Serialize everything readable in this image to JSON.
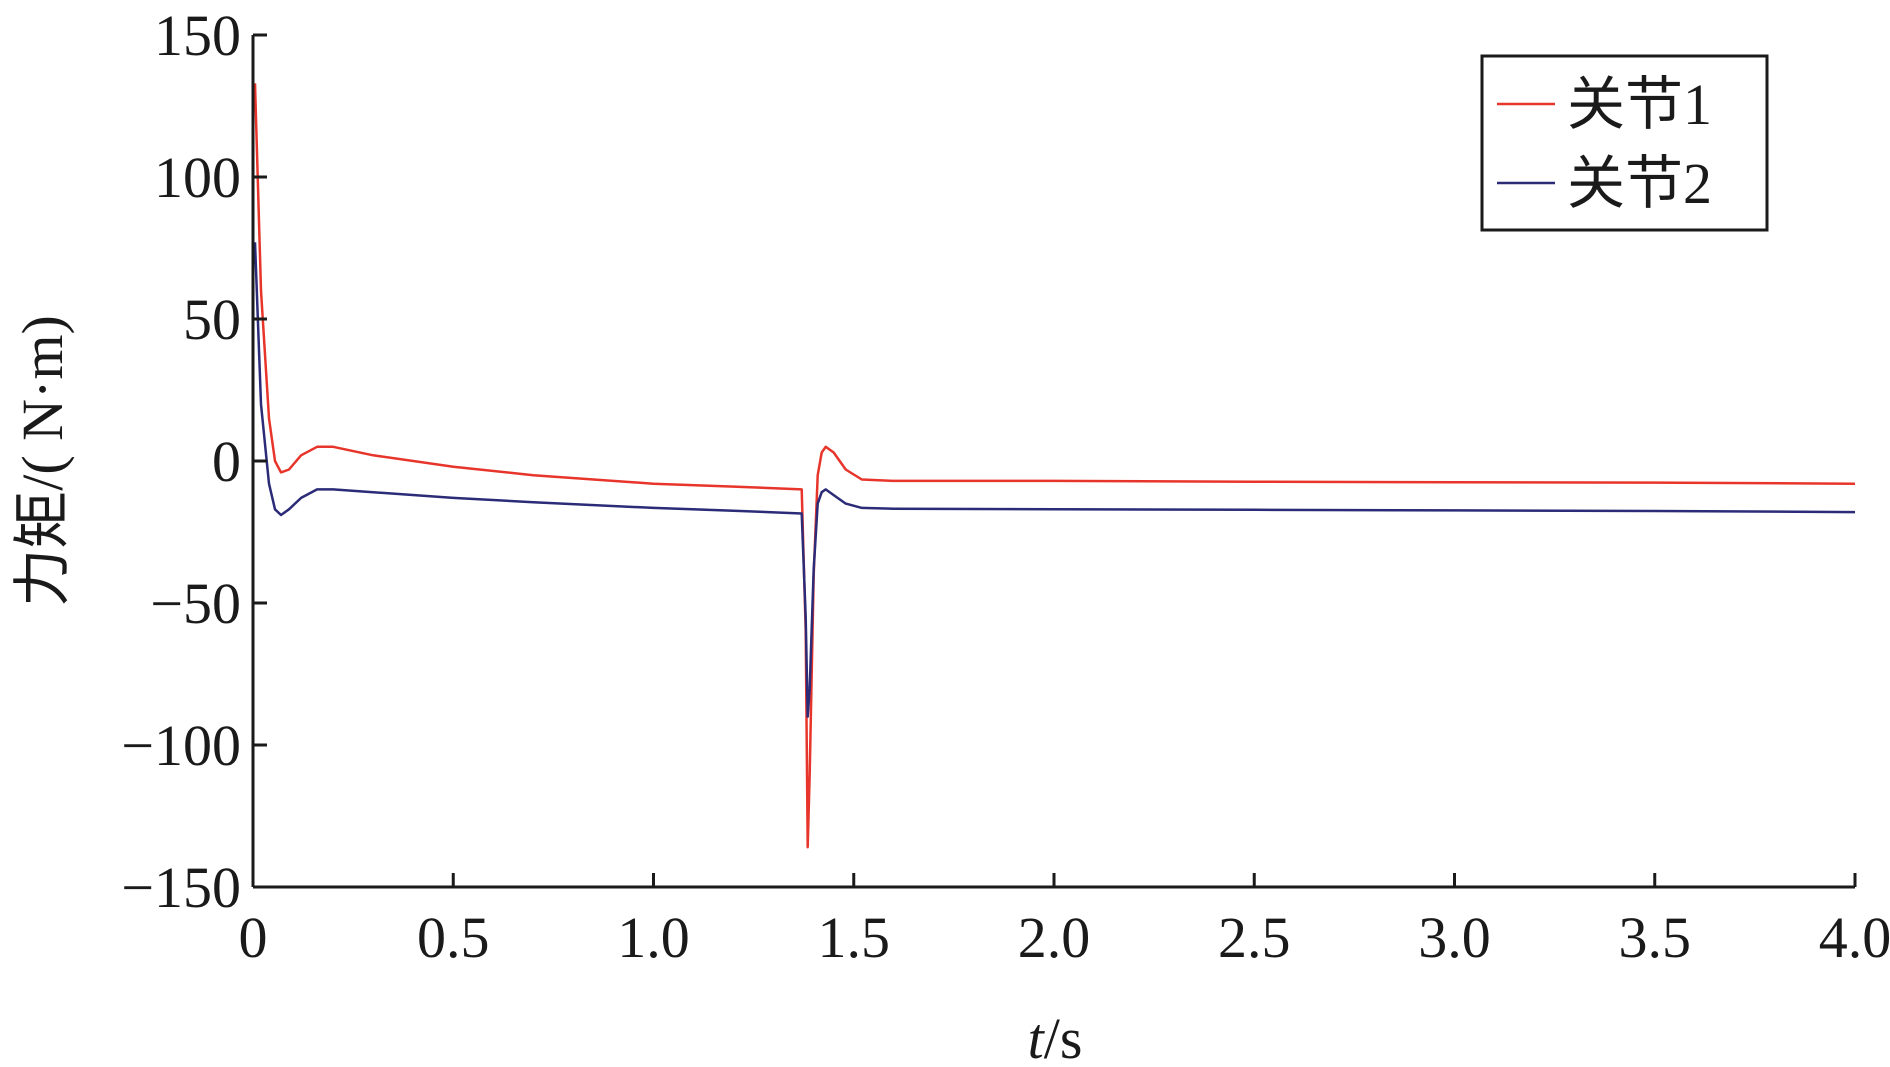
{
  "chart_data": {
    "type": "line",
    "title": "",
    "xlabel_italic": "t",
    "xlabel_rest": "/s",
    "ylabel": "力矩/( N·m)",
    "xlim": [
      0,
      4.0
    ],
    "ylim": [
      -150,
      150
    ],
    "xticks": [
      0,
      0.5,
      1.0,
      1.5,
      2.0,
      2.5,
      3.0,
      3.5,
      4.0
    ],
    "xtick_labels": [
      "0",
      "0.5",
      "1.0",
      "1.5",
      "2.0",
      "2.5",
      "3.0",
      "3.5",
      "4.0"
    ],
    "yticks": [
      150,
      100,
      50,
      0,
      -50,
      -100,
      -150
    ],
    "ytick_labels": [
      "150",
      "100",
      "50",
      "0",
      "−50",
      "−100",
      "−150"
    ],
    "grid": false,
    "legend": "top-right",
    "series": [
      {
        "name": "关节1",
        "color": "#e8352b",
        "x": [
          0.005,
          0.02,
          0.04,
          0.055,
          0.07,
          0.09,
          0.12,
          0.16,
          0.2,
          0.3,
          0.5,
          0.7,
          1.0,
          1.2,
          1.37,
          1.38,
          1.385,
          1.39,
          1.4,
          1.41,
          1.42,
          1.43,
          1.45,
          1.48,
          1.52,
          1.6,
          2.0,
          2.5,
          3.0,
          3.5,
          4.0
        ],
        "values": [
          133,
          60,
          15,
          0,
          -4,
          -3,
          2,
          5,
          5,
          2,
          -2,
          -5,
          -8,
          -9,
          -10,
          -60,
          -136,
          -110,
          -40,
          -5,
          3,
          5,
          3,
          -3,
          -6.5,
          -7,
          -7,
          -7.3,
          -7.5,
          -7.6,
          -8
        ]
      },
      {
        "name": "关节2",
        "color": "#2b2b78",
        "x": [
          0.005,
          0.02,
          0.04,
          0.055,
          0.07,
          0.09,
          0.12,
          0.16,
          0.2,
          0.3,
          0.5,
          0.7,
          1.0,
          1.2,
          1.37,
          1.38,
          1.385,
          1.39,
          1.4,
          1.41,
          1.42,
          1.43,
          1.45,
          1.48,
          1.52,
          1.6,
          2.0,
          2.5,
          3.0,
          3.5,
          4.0
        ],
        "values": [
          77,
          20,
          -8,
          -17,
          -19,
          -17,
          -13,
          -10,
          -10,
          -11,
          -13,
          -14.5,
          -16.5,
          -17.5,
          -18.5,
          -55,
          -90,
          -80,
          -38,
          -15,
          -11,
          -10,
          -12,
          -15,
          -16.5,
          -16.8,
          -17,
          -17.2,
          -17.4,
          -17.6,
          -18
        ]
      }
    ]
  }
}
